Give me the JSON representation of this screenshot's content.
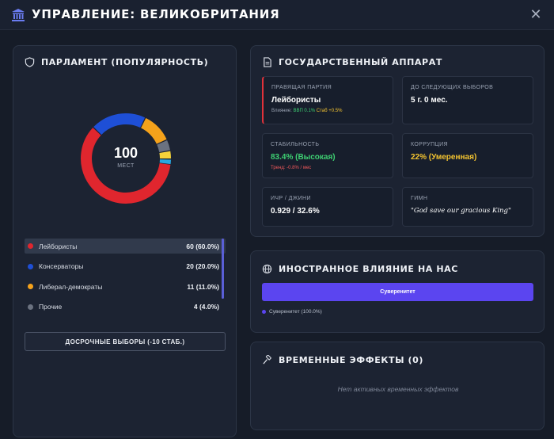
{
  "header": {
    "title": "УПРАВЛЕНИЕ: ВЕЛИКОБРИТАНИЯ"
  },
  "parliament": {
    "title": "ПАРЛАМЕНТ (ПОПУЛЯРНОСТЬ)",
    "seats_total": "100",
    "seats_label": "МЕСТ",
    "parties": [
      {
        "name": "Лейбористы",
        "value": "60 (60.0%)",
        "seats": 60,
        "color": "#e0262e",
        "selected": true
      },
      {
        "name": "Консерваторы",
        "value": "20 (20.0%)",
        "seats": 20,
        "color": "#1e4fd6"
      },
      {
        "name": "Либерал-демократы",
        "value": "11 (11.0%)",
        "seats": 11,
        "color": "#f5a21b"
      },
      {
        "name": "Прочие",
        "value": "4 (4.0%)",
        "seats": 4,
        "color": "#6b7280"
      }
    ],
    "hidden_segments": [
      {
        "seats": 3,
        "color": "#f5d33a"
      },
      {
        "seats": 2,
        "color": "#2aa7e0"
      }
    ],
    "early_election_label": "ДОСРОЧНЫЕ ВЫБОРЫ (-10 СТАБ.)"
  },
  "state": {
    "title": "ГОСУДАРСТВЕННЫЙ АППАРАТ",
    "ruling_party_label": "ПРАВЯЩАЯ ПАРТИЯ",
    "ruling_party_value": "Лейбористы",
    "influence_label": "Влияние:",
    "influence_gdp": "ВВП 0.1%",
    "influence_stab": "Стаб +0.5%",
    "next_election_label": "ДО СЛЕДУЮЩИХ ВЫБОРОВ",
    "next_election_value": "5 г. 0 мес.",
    "stability_label": "СТАБИЛЬНОСТЬ",
    "stability_value": "83.4% (Высокая)",
    "stability_trend": "Тренд: -0.8% / мес",
    "corruption_label": "КОРРУПЦИЯ",
    "corruption_value": "22% (Умеренная)",
    "hdi_label": "ИЧР / ДЖИНИ",
    "hdi_value": "0.929 / 32.6%",
    "anthem_label": "ГИМН",
    "anthem_value": "\"God save our gracious King\""
  },
  "foreign": {
    "title": "ИНОСТРАННОЕ ВЛИЯНИЕ НА НАС",
    "bar_label": "Суверенитет",
    "bar_share": 1.0,
    "legend": "Суверенитет (100.0%)",
    "color": "#5b45f0"
  },
  "temp": {
    "title": "ВРЕМЕННЫЕ ЭФФЕКТЫ (0)",
    "empty_text": "Нет активных временных эффектов"
  }
}
